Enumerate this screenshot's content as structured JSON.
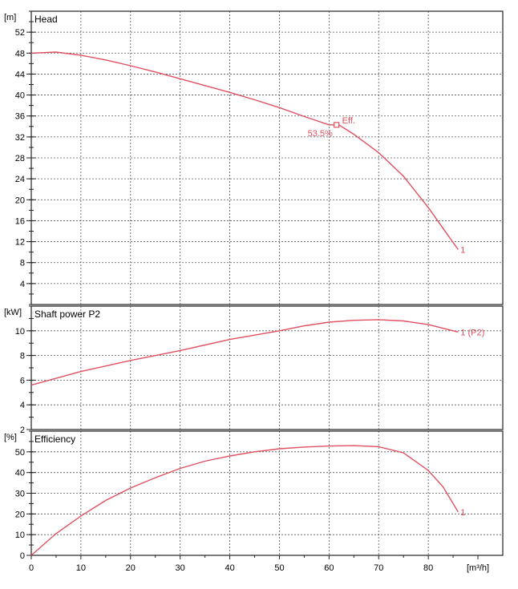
{
  "chart_data": {
    "type": "line",
    "x_unit": "[m³/h]",
    "x_range": [
      0,
      95
    ],
    "x_ticks": [
      0,
      10,
      20,
      30,
      40,
      50,
      60,
      70,
      80
    ],
    "curve_color": "#e05060",
    "panels": [
      {
        "id": "head",
        "title": "Head",
        "unit": "[m]",
        "y_range": [
          0,
          56
        ],
        "y_ticks": [
          4,
          8,
          12,
          16,
          20,
          24,
          28,
          32,
          36,
          40,
          44,
          48,
          52
        ],
        "series": [
          {
            "name": "1",
            "x": [
              0,
              5,
              10,
              15,
              20,
              25,
              30,
              35,
              40,
              45,
              50,
              55,
              60,
              62,
              65,
              70,
              75,
              80,
              83,
              86
            ],
            "y": [
              48.0,
              48.2,
              47.6,
              46.7,
              45.6,
              44.4,
              43.1,
              41.8,
              40.5,
              39.1,
              37.6,
              35.9,
              34.3,
              34.3,
              32.5,
              29.0,
              24.5,
              18.5,
              14.5,
              10.5
            ]
          }
        ],
        "annotations": [
          {
            "label": "Eff.",
            "x": 61.5,
            "y": 34.3,
            "marker": "square"
          },
          {
            "label": "53.5%",
            "x": 61.5,
            "y": 34.3
          }
        ]
      },
      {
        "id": "power",
        "title": "Shaft power P2",
        "unit": "[kW]",
        "y_range": [
          2,
          12
        ],
        "y_ticks": [
          2,
          4,
          6,
          8,
          10
        ],
        "series": [
          {
            "name": "1 (P2)",
            "x": [
              0,
              10,
              20,
              30,
              40,
              50,
              55,
              60,
              65,
              70,
              75,
              80,
              86
            ],
            "y": [
              5.6,
              6.7,
              7.6,
              8.4,
              9.3,
              10.0,
              10.4,
              10.7,
              10.85,
              10.9,
              10.8,
              10.5,
              9.9
            ]
          }
        ]
      },
      {
        "id": "efficiency",
        "title": "Efficiency",
        "unit": "[%]",
        "y_range": [
          0,
          60
        ],
        "y_ticks": [
          0,
          10,
          20,
          30,
          40,
          50
        ],
        "series": [
          {
            "name": "1",
            "x": [
              0,
              5,
              10,
              15,
              20,
              25,
              30,
              35,
              40,
              45,
              50,
              55,
              60,
              65,
              70,
              75,
              80,
              83,
              86
            ],
            "y": [
              0,
              10.5,
              19.0,
              26.5,
              32.5,
              37.5,
              42.0,
              45.5,
              48.0,
              50.0,
              51.5,
              52.3,
              52.8,
              53.0,
              52.5,
              49.5,
              41.0,
              33.0,
              21.0
            ]
          }
        ]
      }
    ]
  }
}
